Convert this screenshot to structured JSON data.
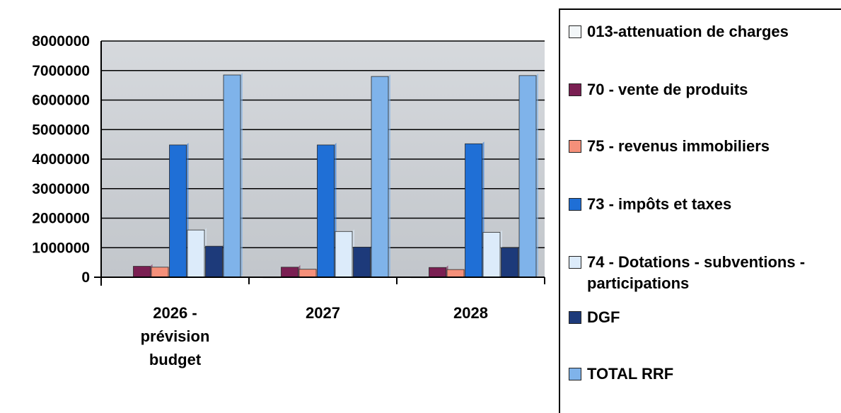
{
  "chart_data": {
    "type": "bar",
    "categories": [
      [
        "2026 -",
        "prévision",
        "budget"
      ],
      [
        "2027"
      ],
      [
        "2028"
      ]
    ],
    "series": [
      {
        "name": "013-attenuation de charges",
        "color": "#f2f6f8",
        "values": [
          10000,
          8000,
          8000
        ]
      },
      {
        "name": "70 - vente de produits",
        "color": "#7a1f52",
        "values": [
          370000,
          340000,
          330000
        ]
      },
      {
        "name": "75 - revenus immobiliers",
        "color": "#f5907a",
        "values": [
          340000,
          270000,
          260000
        ]
      },
      {
        "name": "73 - impôts et taxes",
        "color": "#1f6fd6",
        "values": [
          4480000,
          4480000,
          4520000
        ]
      },
      {
        "name": "74 - Dotations - subventions - participations",
        "color": "#dcebfa",
        "values": [
          1600000,
          1550000,
          1520000
        ]
      },
      {
        "name": "DGF",
        "color": "#1d3a7a",
        "values": [
          1050000,
          1020000,
          1000000
        ]
      },
      {
        "name": "TOTAL RRF",
        "color": "#7fb3ea",
        "values": [
          6850000,
          6800000,
          6830000
        ]
      }
    ],
    "ylim": [
      0,
      8000000
    ],
    "yticks": [
      "0",
      "1000000",
      "2000000",
      "3000000",
      "4000000",
      "5000000",
      "6000000",
      "7000000",
      "8000000"
    ],
    "grid": true,
    "plot_background": "#c9cdd2",
    "legend_placement": "right"
  }
}
